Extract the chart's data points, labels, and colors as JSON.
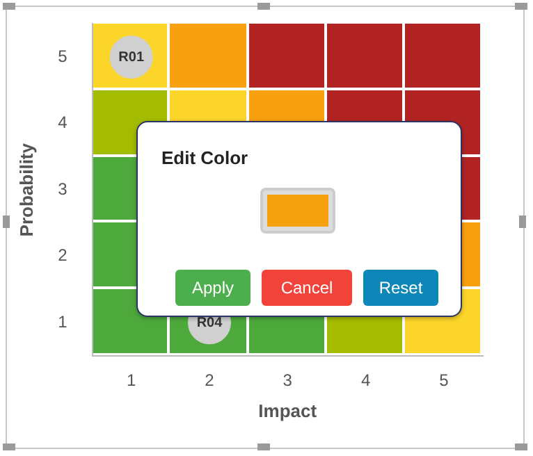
{
  "chart_data": {
    "type": "scatter",
    "xlabel": "Impact",
    "ylabel": "Probability",
    "x": [
      1,
      2
    ],
    "values": [
      5,
      1
    ],
    "value_labels": [
      "R01",
      "R04"
    ],
    "color": "#d0d0d0",
    "xlim": [
      0.5,
      5.5
    ],
    "ylim": [
      0.5,
      5.5
    ],
    "xticks": [
      1,
      2,
      3,
      4,
      5
    ],
    "yticks": [
      1,
      2,
      3,
      4,
      5
    ],
    "grid": false,
    "legend": false,
    "marker": "circle",
    "annotations": [
      "Edit Color",
      "Apply",
      "Cancel",
      "Reset"
    ]
  }
}
